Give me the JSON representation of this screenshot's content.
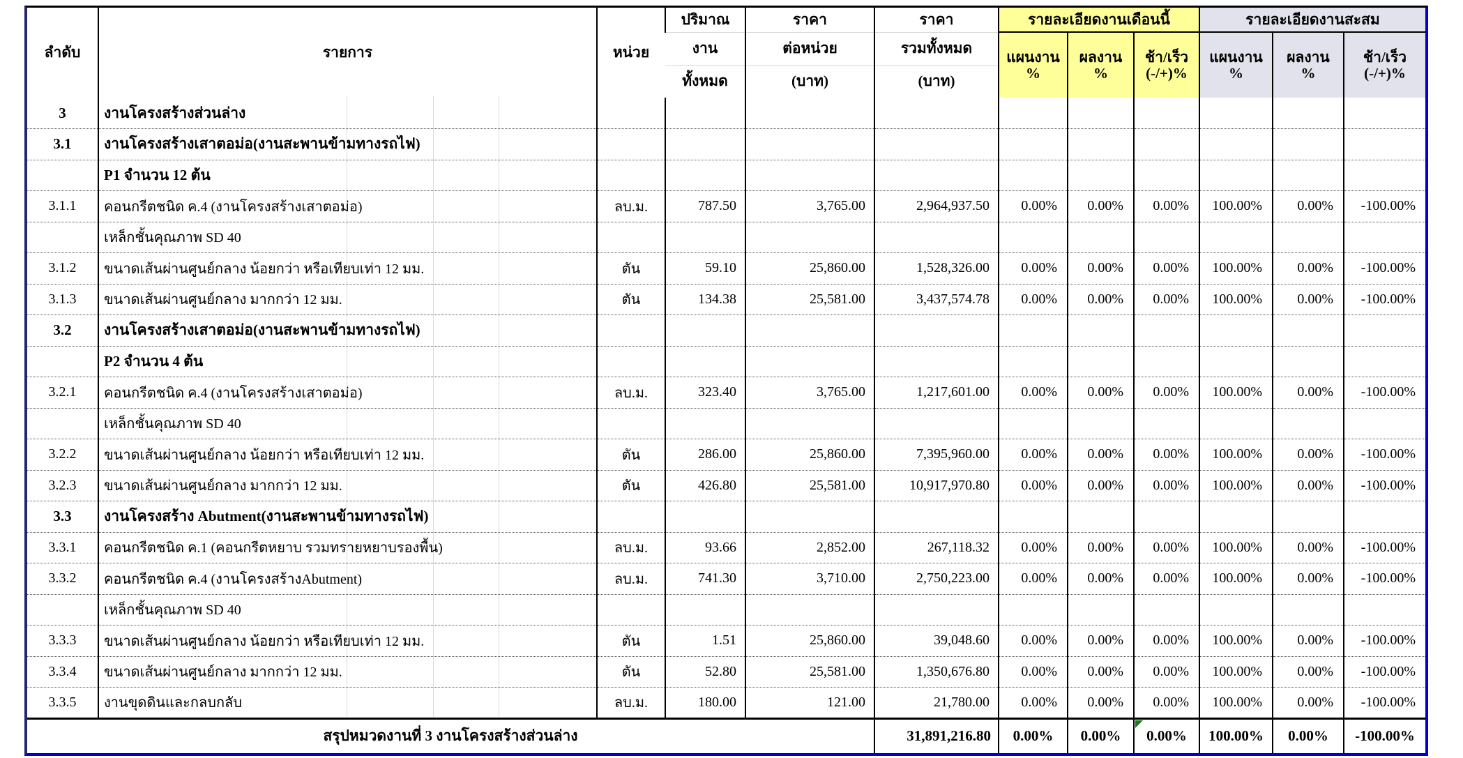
{
  "header": {
    "col_no": "ลำดับ",
    "col_item": "รายการ",
    "col_unit": "หน่วย",
    "col_qty": [
      "ปริมาณ",
      "งาน",
      "ทั้งหมด"
    ],
    "col_unit_price": [
      "ราคา",
      "ต่อหน่วย",
      "(บาท)"
    ],
    "col_total_price": [
      "ราคา",
      "รวมทั้งหมด",
      "(บาท)"
    ],
    "group_month": {
      "title": "รายละเอียดงานเดือนนี้",
      "cols": [
        [
          "แผนงาน",
          "%"
        ],
        [
          "ผลงาน",
          "%"
        ],
        [
          "ช้า/เร็ว",
          "(-/+)%"
        ]
      ]
    },
    "group_cumulative": {
      "title": "รายละเอียดงานสะสม",
      "cols": [
        [
          "แผนงาน",
          "%"
        ],
        [
          "ผลงาน",
          "%"
        ],
        [
          "ช้า/เร็ว",
          "(-/+)%"
        ]
      ]
    }
  },
  "rows": [
    {
      "no": "3",
      "desc": "งานโครงสร้างส่วนล่าง",
      "unit": "",
      "qty": "",
      "unit_price": "",
      "total_price": "",
      "month_plan": "",
      "month_actual": "",
      "month_diff": "",
      "cum_plan": "",
      "cum_actual": "",
      "cum_diff": "",
      "bold": true
    },
    {
      "no": "3.1",
      "desc": "งานโครงสร้างเสาตอม่อ(งานสะพานข้ามทางรถไฟ)",
      "unit": "",
      "qty": "",
      "unit_price": "",
      "total_price": "",
      "month_plan": "",
      "month_actual": "",
      "month_diff": "",
      "cum_plan": "",
      "cum_actual": "",
      "cum_diff": "",
      "bold": true
    },
    {
      "no": "",
      "desc": "P1 จำนวน 12 ต้น",
      "unit": "",
      "qty": "",
      "unit_price": "",
      "total_price": "",
      "month_plan": "",
      "month_actual": "",
      "month_diff": "",
      "cum_plan": "",
      "cum_actual": "",
      "cum_diff": "",
      "bold": true
    },
    {
      "no": "3.1.1",
      "desc": "คอนกรีตชนิด ค.4 (งานโครงสร้างเสาตอม่อ)",
      "unit": "ลบ.ม.",
      "qty": "787.50",
      "unit_price": "3,765.00",
      "total_price": "2,964,937.50",
      "month_plan": "0.00%",
      "month_actual": "0.00%",
      "month_diff": "0.00%",
      "cum_plan": "100.00%",
      "cum_actual": "0.00%",
      "cum_diff": "-100.00%",
      "bold": false
    },
    {
      "no": "",
      "desc": "เหล็กชั้นคุณภาพ SD 40",
      "unit": "",
      "qty": "",
      "unit_price": "",
      "total_price": "",
      "month_plan": "",
      "month_actual": "",
      "month_diff": "",
      "cum_plan": "",
      "cum_actual": "",
      "cum_diff": "",
      "bold": false
    },
    {
      "no": "3.1.2",
      "desc": "ขนาดเส้นผ่านศูนย์กลาง น้อยกว่า หรือเทียบเท่า 12 มม.",
      "unit": "ตัน",
      "qty": "59.10",
      "unit_price": "25,860.00",
      "total_price": "1,528,326.00",
      "month_plan": "0.00%",
      "month_actual": "0.00%",
      "month_diff": "0.00%",
      "cum_plan": "100.00%",
      "cum_actual": "0.00%",
      "cum_diff": "-100.00%",
      "bold": false
    },
    {
      "no": "3.1.3",
      "desc": "ขนาดเส้นผ่านศูนย์กลาง มากกว่า 12 มม.",
      "unit": "ตัน",
      "qty": "134.38",
      "unit_price": "25,581.00",
      "total_price": "3,437,574.78",
      "month_plan": "0.00%",
      "month_actual": "0.00%",
      "month_diff": "0.00%",
      "cum_plan": "100.00%",
      "cum_actual": "0.00%",
      "cum_diff": "-100.00%",
      "bold": false
    },
    {
      "no": "3.2",
      "desc": "งานโครงสร้างเสาตอม่อ(งานสะพานข้ามทางรถไฟ)",
      "unit": "",
      "qty": "",
      "unit_price": "",
      "total_price": "",
      "month_plan": "",
      "month_actual": "",
      "month_diff": "",
      "cum_plan": "",
      "cum_actual": "",
      "cum_diff": "",
      "bold": true
    },
    {
      "no": "",
      "desc": "P2 จำนวน 4 ต้น",
      "unit": "",
      "qty": "",
      "unit_price": "",
      "total_price": "",
      "month_plan": "",
      "month_actual": "",
      "month_diff": "",
      "cum_plan": "",
      "cum_actual": "",
      "cum_diff": "",
      "bold": true
    },
    {
      "no": "3.2.1",
      "desc": "คอนกรีตชนิด ค.4 (งานโครงสร้างเสาตอม่อ)",
      "unit": "ลบ.ม.",
      "qty": "323.40",
      "unit_price": "3,765.00",
      "total_price": "1,217,601.00",
      "month_plan": "0.00%",
      "month_actual": "0.00%",
      "month_diff": "0.00%",
      "cum_plan": "100.00%",
      "cum_actual": "0.00%",
      "cum_diff": "-100.00%",
      "bold": false
    },
    {
      "no": "",
      "desc": "เหล็กชั้นคุณภาพ SD 40",
      "unit": "",
      "qty": "",
      "unit_price": "",
      "total_price": "",
      "month_plan": "",
      "month_actual": "",
      "month_diff": "",
      "cum_plan": "",
      "cum_actual": "",
      "cum_diff": "",
      "bold": false
    },
    {
      "no": "3.2.2",
      "desc": "ขนาดเส้นผ่านศูนย์กลาง น้อยกว่า หรือเทียบเท่า 12 มม.",
      "unit": "ตัน",
      "qty": "286.00",
      "unit_price": "25,860.00",
      "total_price": "7,395,960.00",
      "month_plan": "0.00%",
      "month_actual": "0.00%",
      "month_diff": "0.00%",
      "cum_plan": "100.00%",
      "cum_actual": "0.00%",
      "cum_diff": "-100.00%",
      "bold": false
    },
    {
      "no": "3.2.3",
      "desc": "ขนาดเส้นผ่านศูนย์กลาง มากกว่า 12 มม.",
      "unit": "ตัน",
      "qty": "426.80",
      "unit_price": "25,581.00",
      "total_price": "10,917,970.80",
      "month_plan": "0.00%",
      "month_actual": "0.00%",
      "month_diff": "0.00%",
      "cum_plan": "100.00%",
      "cum_actual": "0.00%",
      "cum_diff": "-100.00%",
      "bold": false
    },
    {
      "no": "3.3",
      "desc": "งานโครงสร้าง Abutment(งานสะพานข้ามทางรถไฟ)",
      "unit": "",
      "qty": "",
      "unit_price": "",
      "total_price": "",
      "month_plan": "",
      "month_actual": "",
      "month_diff": "",
      "cum_plan": "",
      "cum_actual": "",
      "cum_diff": "",
      "bold": true
    },
    {
      "no": "3.3.1",
      "desc": "คอนกรีตชนิด ค.1 (คอนกรีตหยาบ รวมทรายหยาบรองพื้น)",
      "unit": "ลบ.ม.",
      "qty": "93.66",
      "unit_price": "2,852.00",
      "total_price": "267,118.32",
      "month_plan": "0.00%",
      "month_actual": "0.00%",
      "month_diff": "0.00%",
      "cum_plan": "100.00%",
      "cum_actual": "0.00%",
      "cum_diff": "-100.00%",
      "bold": false
    },
    {
      "no": "3.3.2",
      "desc": "คอนกรีตชนิด ค.4 (งานโครงสร้างAbutment)",
      "unit": "ลบ.ม.",
      "qty": "741.30",
      "unit_price": "3,710.00",
      "total_price": "2,750,223.00",
      "month_plan": "0.00%",
      "month_actual": "0.00%",
      "month_diff": "0.00%",
      "cum_plan": "100.00%",
      "cum_actual": "0.00%",
      "cum_diff": "-100.00%",
      "bold": false
    },
    {
      "no": "",
      "desc": "เหล็กชั้นคุณภาพ SD 40",
      "unit": "",
      "qty": "",
      "unit_price": "",
      "total_price": "",
      "month_plan": "",
      "month_actual": "",
      "month_diff": "",
      "cum_plan": "",
      "cum_actual": "",
      "cum_diff": "",
      "bold": false
    },
    {
      "no": "3.3.3",
      "desc": "ขนาดเส้นผ่านศูนย์กลาง น้อยกว่า หรือเทียบเท่า 12 มม.",
      "unit": "ตัน",
      "qty": "1.51",
      "unit_price": "25,860.00",
      "total_price": "39,048.60",
      "month_plan": "0.00%",
      "month_actual": "0.00%",
      "month_diff": "0.00%",
      "cum_plan": "100.00%",
      "cum_actual": "0.00%",
      "cum_diff": "-100.00%",
      "bold": false
    },
    {
      "no": "3.3.4",
      "desc": "ขนาดเส้นผ่านศูนย์กลาง มากกว่า 12 มม.",
      "unit": "ตัน",
      "qty": "52.80",
      "unit_price": "25,581.00",
      "total_price": "1,350,676.80",
      "month_plan": "0.00%",
      "month_actual": "0.00%",
      "month_diff": "0.00%",
      "cum_plan": "100.00%",
      "cum_actual": "0.00%",
      "cum_diff": "-100.00%",
      "bold": false
    },
    {
      "no": "3.3.5",
      "desc": "งานขุดดินและกลบกลับ",
      "unit": "ลบ.ม.",
      "qty": "180.00",
      "unit_price": "121.00",
      "total_price": "21,780.00",
      "month_plan": "0.00%",
      "month_actual": "0.00%",
      "month_diff": "0.00%",
      "cum_plan": "100.00%",
      "cum_actual": "0.00%",
      "cum_diff": "-100.00%",
      "bold": false
    }
  ],
  "summary": {
    "label": "สรุปหมวดงานที่ 3 งานโครงสร้างส่วนล่าง",
    "total_price": "31,891,216.80",
    "month_plan": "0.00%",
    "month_actual": "0.00%",
    "month_diff": "0.00%",
    "cum_plan": "100.00%",
    "cum_actual": "0.00%",
    "cum_diff": "-100.00%"
  },
  "markers": {
    "summary_month_diff_corner": "green-triangle"
  },
  "colors": {
    "month_group_bg": "#FFFF99",
    "cumulative_group_bg": "#E2E2EC",
    "outer_border_blue": "#0000CD",
    "outer_border_navy": "#26266B",
    "flag_green": "#1F7A1F"
  }
}
